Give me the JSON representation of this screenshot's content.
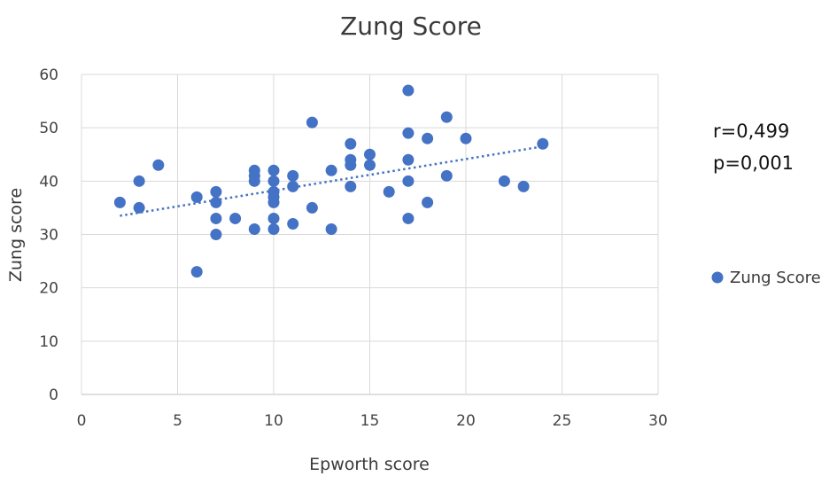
{
  "chart_data": {
    "type": "scatter",
    "title": "Zung Score",
    "xlabel": "Epworth score",
    "ylabel": "Zung score",
    "xlim": [
      0,
      30
    ],
    "ylim": [
      0,
      60
    ],
    "xticks": [
      0,
      5,
      10,
      15,
      20,
      25,
      30
    ],
    "yticks": [
      0,
      10,
      20,
      30,
      40,
      50,
      60
    ],
    "grid": true,
    "legend_position": "right",
    "annotations": [
      "r=0,499",
      "p=0,001"
    ],
    "series": [
      {
        "name": "Zung Score",
        "color": "#4472c4",
        "points": [
          [
            2,
            36
          ],
          [
            3,
            40
          ],
          [
            3,
            35
          ],
          [
            4,
            43
          ],
          [
            6,
            37
          ],
          [
            6,
            23
          ],
          [
            7,
            38
          ],
          [
            7,
            36
          ],
          [
            7,
            33
          ],
          [
            7,
            30
          ],
          [
            8,
            33
          ],
          [
            9,
            42
          ],
          [
            9,
            41
          ],
          [
            9,
            40
          ],
          [
            9,
            31
          ],
          [
            10,
            42
          ],
          [
            10,
            40
          ],
          [
            10,
            38
          ],
          [
            10,
            37
          ],
          [
            10,
            36
          ],
          [
            10,
            33
          ],
          [
            10,
            31
          ],
          [
            11,
            41
          ],
          [
            11,
            39
          ],
          [
            11,
            32
          ],
          [
            12,
            51
          ],
          [
            12,
            35
          ],
          [
            13,
            42
          ],
          [
            13,
            31
          ],
          [
            14,
            47
          ],
          [
            14,
            44
          ],
          [
            14,
            43
          ],
          [
            14,
            39
          ],
          [
            15,
            45
          ],
          [
            15,
            43
          ],
          [
            16,
            38
          ],
          [
            17,
            57
          ],
          [
            17,
            49
          ],
          [
            17,
            44
          ],
          [
            17,
            40
          ],
          [
            17,
            33
          ],
          [
            18,
            48
          ],
          [
            18,
            36
          ],
          [
            19,
            52
          ],
          [
            19,
            41
          ],
          [
            20,
            48
          ],
          [
            22,
            40
          ],
          [
            23,
            39
          ],
          [
            24,
            47
          ]
        ]
      }
    ],
    "trendline": {
      "type": "linear",
      "style": "dotted",
      "x_range": [
        2,
        24
      ],
      "y_start": 33.5,
      "y_end": 46.5
    }
  }
}
